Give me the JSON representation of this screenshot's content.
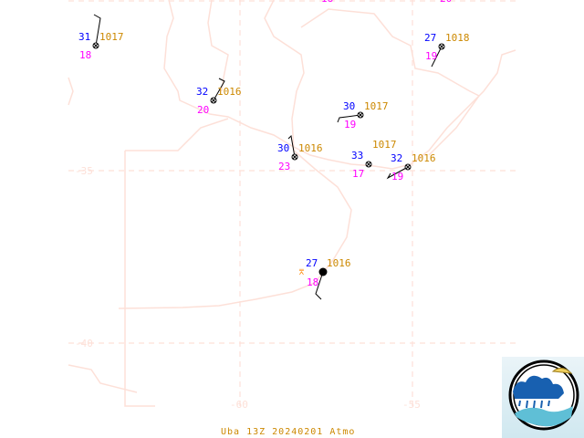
{
  "map": {
    "title": "Uba 13Z 20240201 Atmo",
    "lat_labels": [
      "-35",
      "-40"
    ],
    "lon_labels": [
      "-60",
      "-55"
    ],
    "top_partial_labels": [
      "18",
      "20"
    ],
    "colors": {
      "temperature": "#0000ff",
      "pressure": "#cc8800",
      "dewpoint": "#ff00ff",
      "coast": "#fde0d8",
      "grid": "#fde0d8"
    }
  },
  "stations": [
    {
      "temperature": "31",
      "pressure": "1017",
      "dewpoint": "18",
      "sky": "obscured"
    },
    {
      "temperature": "32",
      "pressure": "1016",
      "dewpoint": "20",
      "sky": "obscured"
    },
    {
      "temperature": "30",
      "pressure": "1016",
      "dewpoint": "23",
      "sky": "obscured"
    },
    {
      "temperature": "30",
      "pressure": "1017",
      "dewpoint": "19",
      "sky": "obscured"
    },
    {
      "temperature": "33",
      "pressure": "1017",
      "dewpoint": "17",
      "sky": "obscured"
    },
    {
      "temperature": "32",
      "pressure": "1016",
      "dewpoint": "19",
      "sky": "obscured"
    },
    {
      "temperature": "27",
      "pressure": "1018",
      "dewpoint": "19",
      "sky": "obscured"
    },
    {
      "temperature": "27",
      "pressure": "1016",
      "dewpoint": "18",
      "sky": "overcast",
      "weather": "thunderstorm"
    }
  ]
}
